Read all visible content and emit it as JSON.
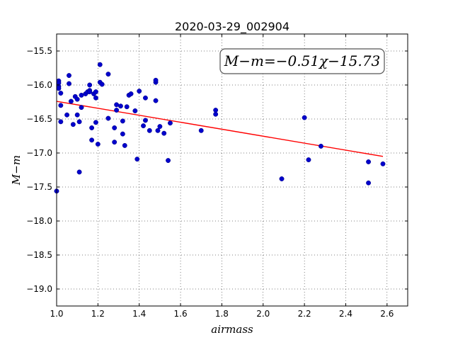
{
  "chart_data": {
    "type": "scatter",
    "title": "2020-03-29_002904",
    "xlabel": "airmass",
    "ylabel": "M−m",
    "xlim": [
      1.0,
      2.7
    ],
    "ylim": [
      -15.25,
      -19.25
    ],
    "xticks": [
      "1.0",
      "1.2",
      "1.4",
      "1.6",
      "1.8",
      "2.0",
      "2.2",
      "2.4",
      "2.6"
    ],
    "yticks": [
      "−15.5",
      "−16.0",
      "−16.5",
      "−17.0",
      "−17.5",
      "−18.0",
      "−18.5",
      "−19.0"
    ],
    "grid": true,
    "annotation": "M−m=−0.51χ−15.73",
    "point_color": "#0000cc",
    "fit_color": "#ff0000",
    "fit_line": {
      "x": [
        1.0,
        2.58
      ],
      "y": [
        -16.24,
        -17.05
      ]
    },
    "points": [
      [
        1.0,
        -17.56
      ],
      [
        1.01,
        -15.94
      ],
      [
        1.01,
        -15.97
      ],
      [
        1.01,
        -16.02
      ],
      [
        1.01,
        -16.05
      ],
      [
        1.02,
        -16.12
      ],
      [
        1.02,
        -16.3
      ],
      [
        1.02,
        -16.54
      ],
      [
        1.05,
        -16.44
      ],
      [
        1.06,
        -15.98
      ],
      [
        1.06,
        -15.86
      ],
      [
        1.07,
        -16.24
      ],
      [
        1.08,
        -16.58
      ],
      [
        1.09,
        -16.17
      ],
      [
        1.1,
        -16.21
      ],
      [
        1.1,
        -16.44
      ],
      [
        1.11,
        -16.54
      ],
      [
        1.11,
        -17.28
      ],
      [
        1.12,
        -16.33
      ],
      [
        1.12,
        -16.15
      ],
      [
        1.14,
        -16.13
      ],
      [
        1.15,
        -16.1
      ],
      [
        1.16,
        -16.0
      ],
      [
        1.16,
        -16.08
      ],
      [
        1.16,
        -16.1
      ],
      [
        1.17,
        -16.63
      ],
      [
        1.17,
        -16.81
      ],
      [
        1.18,
        -16.13
      ],
      [
        1.19,
        -16.19
      ],
      [
        1.19,
        -16.1
      ],
      [
        1.19,
        -16.55
      ],
      [
        1.2,
        -16.87
      ],
      [
        1.21,
        -15.96
      ],
      [
        1.21,
        -15.7
      ],
      [
        1.22,
        -15.99
      ],
      [
        1.25,
        -16.49
      ],
      [
        1.25,
        -15.84
      ],
      [
        1.28,
        -16.63
      ],
      [
        1.28,
        -16.84
      ],
      [
        1.29,
        -16.37
      ],
      [
        1.29,
        -16.29
      ],
      [
        1.31,
        -16.31
      ],
      [
        1.32,
        -16.53
      ],
      [
        1.32,
        -16.72
      ],
      [
        1.33,
        -16.89
      ],
      [
        1.34,
        -16.32
      ],
      [
        1.35,
        -16.15
      ],
      [
        1.36,
        -16.13
      ],
      [
        1.38,
        -16.38
      ],
      [
        1.39,
        -17.09
      ],
      [
        1.4,
        -16.09
      ],
      [
        1.42,
        -16.6
      ],
      [
        1.43,
        -16.19
      ],
      [
        1.43,
        -16.52
      ],
      [
        1.45,
        -16.67
      ],
      [
        1.48,
        -16.23
      ],
      [
        1.48,
        -15.96
      ],
      [
        1.48,
        -15.93
      ],
      [
        1.49,
        -16.67
      ],
      [
        1.5,
        -16.61
      ],
      [
        1.52,
        -16.71
      ],
      [
        1.54,
        -17.11
      ],
      [
        1.55,
        -16.56
      ],
      [
        1.7,
        -16.67
      ],
      [
        1.77,
        -16.43
      ],
      [
        1.77,
        -16.37
      ],
      [
        2.09,
        -17.38
      ],
      [
        2.2,
        -16.48
      ],
      [
        2.22,
        -17.1
      ],
      [
        2.28,
        -16.9
      ],
      [
        2.51,
        -17.44
      ],
      [
        2.51,
        -17.13
      ],
      [
        2.58,
        -17.16
      ]
    ]
  }
}
